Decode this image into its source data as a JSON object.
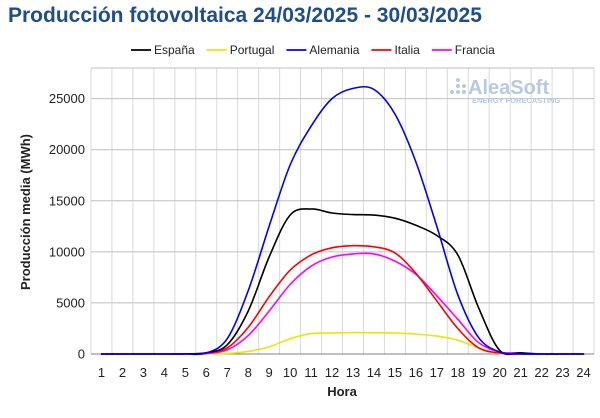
{
  "chart_data": {
    "type": "line",
    "title": "Producción fotovoltaica 24/03/2025 - 30/03/2025",
    "xlabel": "Hora",
    "ylabel": "Producción media (MWh)",
    "x": [
      1,
      2,
      3,
      4,
      5,
      6,
      7,
      8,
      9,
      10,
      11,
      12,
      13,
      14,
      15,
      16,
      17,
      18,
      19,
      20,
      21,
      22,
      23,
      24
    ],
    "ylim": [
      0,
      28000
    ],
    "yticks": [
      0,
      5000,
      10000,
      15000,
      20000,
      25000
    ],
    "ytick_labels": [
      "0",
      "5000",
      "10000",
      "15000",
      "20000",
      "25000"
    ],
    "grid": true,
    "legend_position": "top",
    "series": [
      {
        "name": "España",
        "color": "#000000",
        "values": [
          0,
          0,
          0,
          0,
          20,
          120,
          900,
          4200,
          9500,
          13600,
          14200,
          13800,
          13650,
          13600,
          13300,
          12600,
          11600,
          9700,
          4500,
          350,
          120,
          0,
          0,
          0
        ]
      },
      {
        "name": "Portugal",
        "color": "#e8e800",
        "values": [
          0,
          0,
          0,
          0,
          0,
          10,
          60,
          250,
          700,
          1500,
          2000,
          2050,
          2100,
          2080,
          2050,
          1950,
          1750,
          1350,
          600,
          50,
          0,
          0,
          0,
          0
        ]
      },
      {
        "name": "Alemania",
        "color": "#0000ff",
        "values": [
          0,
          0,
          0,
          0,
          0,
          100,
          1500,
          6200,
          12500,
          18500,
          22300,
          25000,
          26000,
          25900,
          23500,
          18800,
          12500,
          5800,
          1600,
          200,
          0,
          0,
          0,
          0
        ]
      },
      {
        "name": "Italia",
        "color": "#ff0000",
        "values": [
          0,
          0,
          0,
          0,
          10,
          100,
          600,
          2600,
          5600,
          8200,
          9700,
          10400,
          10600,
          10500,
          9900,
          7900,
          5200,
          2500,
          600,
          100,
          0,
          0,
          0,
          0
        ]
      },
      {
        "name": "Francia",
        "color": "#ff00ff",
        "values": [
          0,
          0,
          0,
          0,
          0,
          50,
          400,
          1800,
          4200,
          6800,
          8600,
          9500,
          9800,
          9800,
          9100,
          7800,
          5700,
          3400,
          1100,
          200,
          100,
          0,
          0,
          0
        ]
      }
    ]
  },
  "watermark": {
    "brand": "AleaSoft",
    "tagline": "ENERGY FORECASTING",
    "color": "#b7c9e2"
  }
}
